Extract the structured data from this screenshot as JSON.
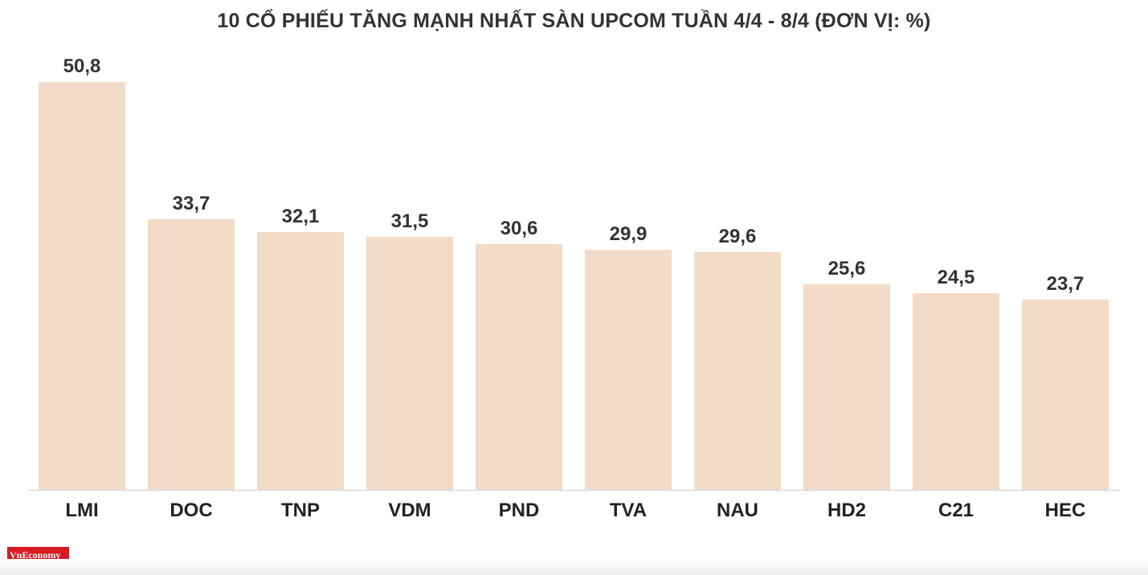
{
  "chart_data": {
    "type": "bar",
    "title": "10 CỔ PHIẾU TĂNG MẠNH NHẤT SÀN UPCOM TUẦN 4/4 - 8/4 (ĐƠN VỊ: %)",
    "categories": [
      "LMI",
      "DOC",
      "TNP",
      "VDM",
      "PND",
      "TVA",
      "NAU",
      "HD2",
      "C21",
      "HEC"
    ],
    "values": [
      50.8,
      33.7,
      32.1,
      31.5,
      30.6,
      29.9,
      29.6,
      25.6,
      24.5,
      23.7
    ],
    "value_labels": [
      "50,8",
      "33,7",
      "32,1",
      "31,5",
      "30,6",
      "29,9",
      "29,6",
      "25,6",
      "24,5",
      "23,7"
    ],
    "ylim": [
      0,
      50.8
    ],
    "grid": false,
    "bar_color": "#f2dcc8",
    "axis_color": "#d9d9d9"
  },
  "logo": {
    "text": "VnEconomy",
    "color": "#d71920"
  }
}
